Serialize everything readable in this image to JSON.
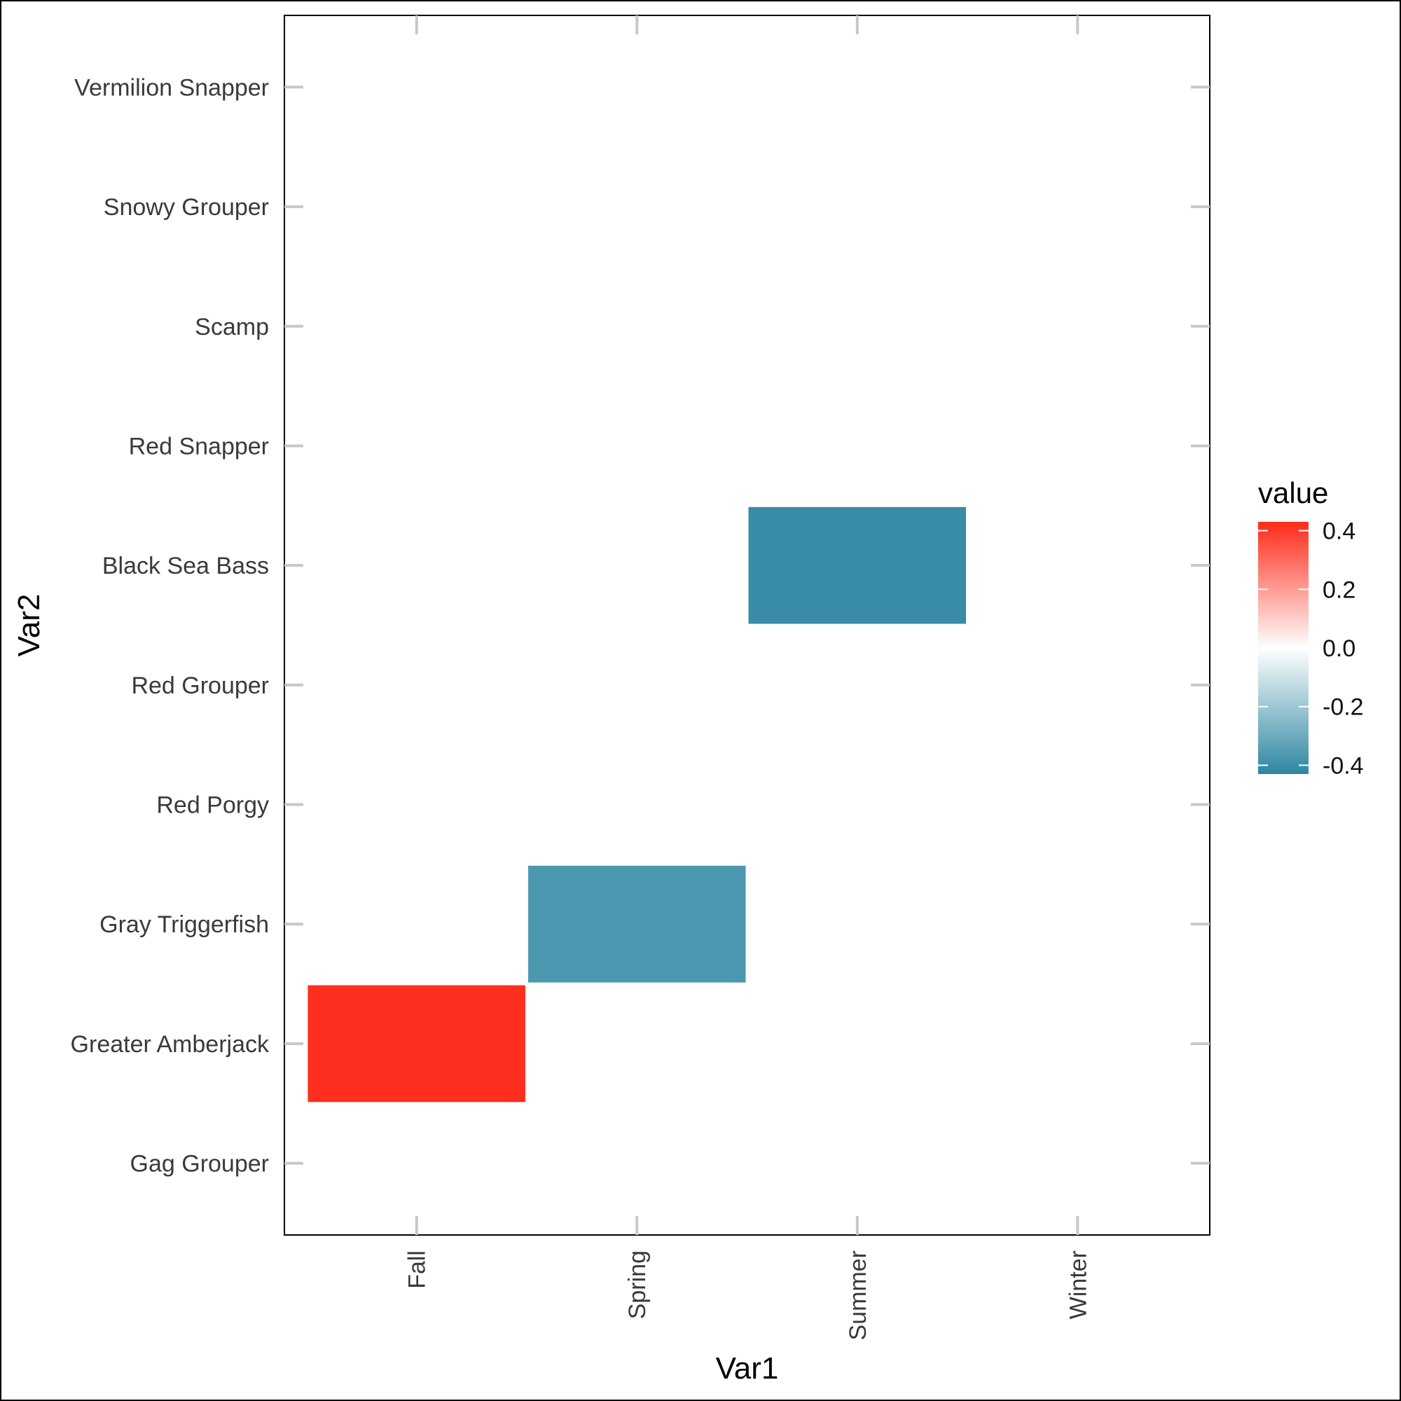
{
  "chart_data": {
    "type": "heatmap",
    "xlabel": "Var1",
    "ylabel": "Var2",
    "x_categories": [
      "Fall",
      "Spring",
      "Summer",
      "Winter"
    ],
    "y_categories": [
      "Gag Grouper",
      "Greater Amberjack",
      "Gray Triggerfish",
      "Red Porgy",
      "Red Grouper",
      "Black Sea Bass",
      "Red Snapper",
      "Scamp",
      "Snowy Grouper ",
      "Vermilion Snapper"
    ],
    "cells": [
      {
        "x": "Fall",
        "y": "Greater Amberjack",
        "value": 0.42
      },
      {
        "x": "Spring",
        "y": "Gray Triggerfish",
        "value": -0.37
      },
      {
        "x": "Summer",
        "y": "Black Sea Bass",
        "value": -0.41
      }
    ],
    "legend": {
      "title": "value",
      "position": "right",
      "ticks": [
        0.4,
        0.2,
        0.0,
        -0.2,
        -0.4
      ],
      "tick_labels": [
        "0.4",
        "0.2",
        "0.0",
        "-0.2",
        "-0.4"
      ],
      "limits": [
        -0.43,
        0.43
      ],
      "low_color": "#2e86a2",
      "mid_color": "#ffffff",
      "high_color": "#ff2a1a"
    },
    "grid": false
  }
}
